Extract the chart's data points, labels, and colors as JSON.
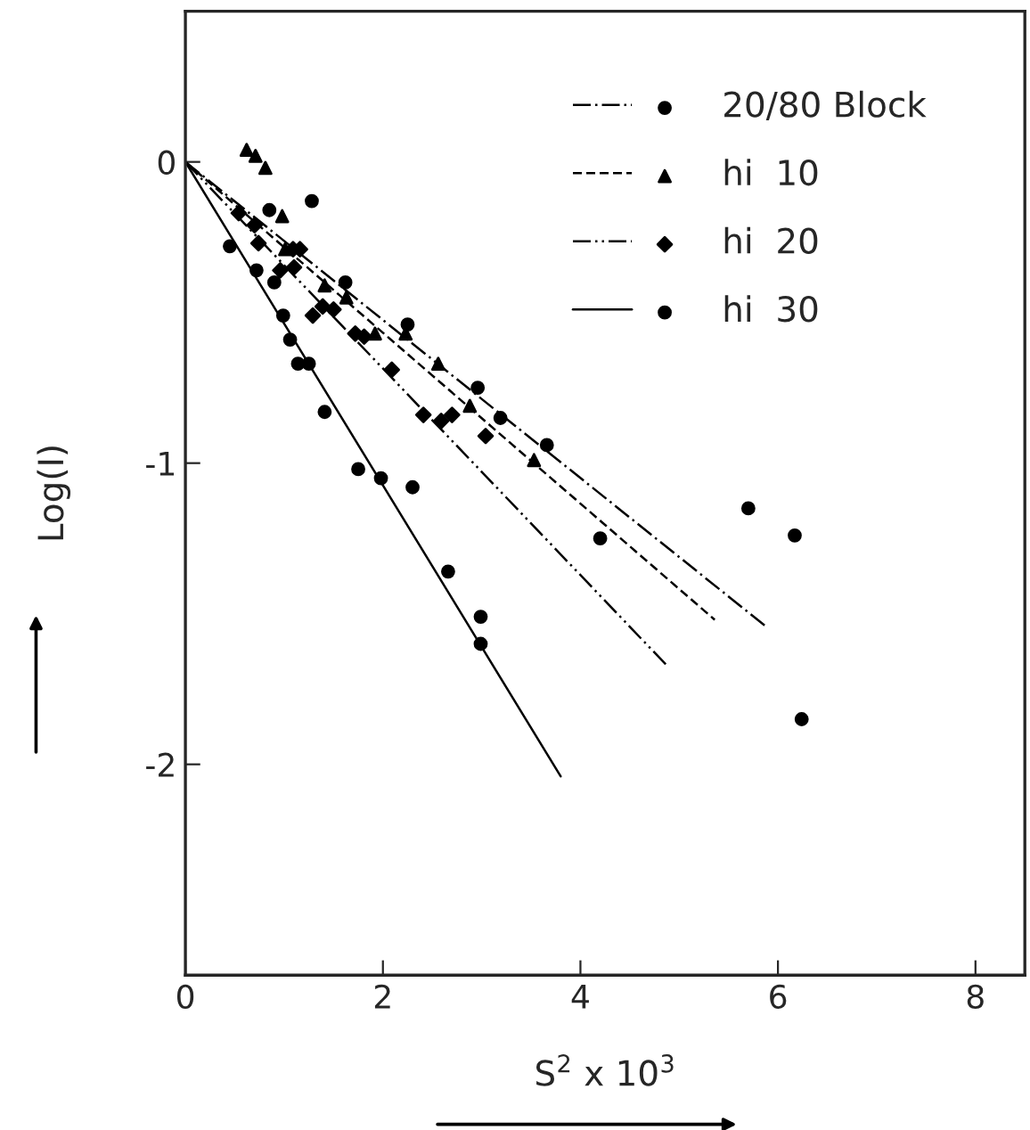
{
  "chart_data": {
    "type": "scatter",
    "xlabel": "S$^{2}$ x 10$^{3}$",
    "ylabel": "Log(I)",
    "xlim": [
      0,
      8.5
    ],
    "ylim": [
      -2.7,
      0.5
    ],
    "xticks": [
      0,
      2,
      4,
      6,
      8
    ],
    "yticks": [
      0,
      -1,
      -2
    ],
    "grid": false,
    "legend": "top right",
    "series": [
      {
        "name": "20/80 Block",
        "color": "#000000",
        "marker": "circle",
        "x": [
          0.85,
          1.28,
          1.62,
          2.25,
          2.96,
          3.19,
          3.66,
          4.2,
          6.17,
          6.24
        ],
        "values": [
          -0.16,
          -0.13,
          -0.4,
          -0.54,
          -0.75,
          -0.85,
          -0.94,
          -1.25,
          -1.24,
          -1.85
        ]
      },
      {
        "type": "line",
        "color": "#000000",
        "line_style": "dashdot",
        "x": [
          0,
          5.87
        ],
        "values": [
          0,
          -1.54
        ]
      },
      {
        "name": "hi  10",
        "color": "#000000",
        "marker": "triangle",
        "x": [
          0.62,
          0.71,
          0.81,
          0.98,
          1.01,
          1.41,
          1.63,
          1.92,
          2.23,
          2.56,
          2.88,
          3.53
        ],
        "values": [
          0.04,
          0.02,
          -0.02,
          -0.18,
          -0.29,
          -0.41,
          -0.45,
          -0.57,
          -0.57,
          -0.67,
          -0.81,
          -0.99
        ]
      },
      {
        "type": "line",
        "color": "#000000",
        "line_style": "dashed",
        "x": [
          0,
          5.36
        ],
        "values": [
          0,
          -1.52
        ]
      },
      {
        "name": "hi  20",
        "color": "#000000",
        "marker": "diamond",
        "x": [
          0.54,
          0.7,
          0.74,
          0.96,
          1.09,
          1.16,
          1.1,
          1.29,
          1.39,
          1.5,
          1.72,
          1.81,
          2.09,
          2.41,
          2.59,
          2.7,
          3.04
        ],
        "values": [
          -0.17,
          -0.21,
          -0.27,
          -0.36,
          -0.29,
          -0.29,
          -0.35,
          -0.51,
          -0.48,
          -0.49,
          -0.57,
          -0.58,
          -0.69,
          -0.84,
          -0.86,
          -0.84,
          -0.91
        ]
      },
      {
        "type": "line",
        "color": "#000000",
        "line_style": "dashdotdot",
        "x": [
          0,
          4.87
        ],
        "values": [
          0,
          -1.67
        ]
      },
      {
        "name": "hi  30",
        "color": "#000000",
        "marker": "circle",
        "x": [
          0.45,
          0.72,
          0.9,
          0.99,
          1.06,
          1.14,
          1.25,
          1.41,
          1.75,
          1.98,
          2.3,
          2.66,
          2.99,
          2.99,
          5.7
        ],
        "values": [
          -0.28,
          -0.36,
          -0.4,
          -0.51,
          -0.59,
          -0.67,
          -0.67,
          -0.83,
          -1.02,
          -1.05,
          -1.08,
          -1.36,
          -1.51,
          -1.6,
          -1.15
        ]
      },
      {
        "type": "line",
        "color": "#000000",
        "line_style": "solid",
        "x": [
          0,
          3.8
        ],
        "values": [
          0,
          -2.04
        ]
      }
    ]
  }
}
